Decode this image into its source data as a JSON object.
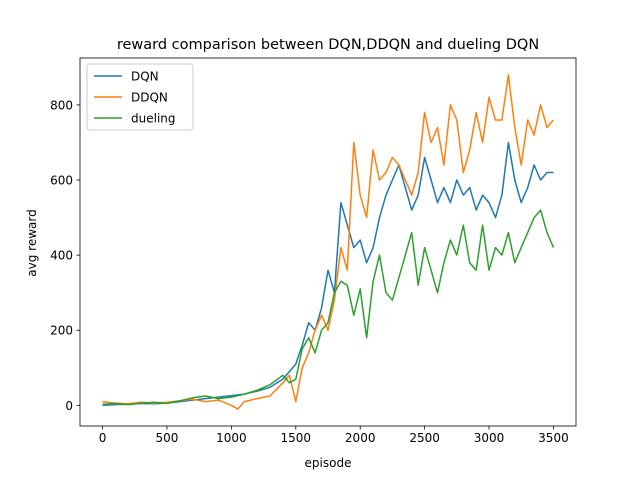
{
  "chart_data": {
    "type": "line",
    "title": "reward comparison between DQN,DDQN and dueling DQN",
    "xlabel": "episode",
    "ylabel": "avg reward",
    "xlim": [
      -175,
      3675
    ],
    "ylim": [
      -55,
      925
    ],
    "xticks": [
      0,
      500,
      1000,
      1500,
      2000,
      2500,
      3000,
      3500
    ],
    "yticks": [
      0,
      200,
      400,
      600,
      800
    ],
    "grid": false,
    "legend_position": "upper left",
    "series": [
      {
        "name": "DQN",
        "color": "#1f77b4",
        "x": [
          0,
          100,
          200,
          300,
          400,
          500,
          600,
          700,
          800,
          900,
          1000,
          1100,
          1200,
          1300,
          1400,
          1450,
          1500,
          1550,
          1600,
          1650,
          1700,
          1750,
          1800,
          1850,
          1900,
          1950,
          2000,
          2050,
          2100,
          2150,
          2200,
          2250,
          2300,
          2350,
          2400,
          2450,
          2500,
          2550,
          2600,
          2650,
          2700,
          2750,
          2800,
          2850,
          2900,
          2950,
          3000,
          3050,
          3100,
          3150,
          3200,
          3250,
          3300,
          3350,
          3400,
          3450,
          3500
        ],
        "values": [
          0,
          2,
          3,
          5,
          4,
          6,
          10,
          14,
          18,
          22,
          26,
          30,
          38,
          48,
          70,
          90,
          110,
          160,
          220,
          200,
          260,
          360,
          300,
          540,
          480,
          420,
          440,
          380,
          420,
          500,
          560,
          600,
          640,
          580,
          520,
          560,
          660,
          600,
          540,
          580,
          540,
          600,
          560,
          580,
          520,
          560,
          540,
          500,
          560,
          700,
          600,
          540,
          580,
          640,
          600,
          620,
          620
        ]
      },
      {
        "name": "DDQN",
        "color": "#ff7f0e",
        "x": [
          0,
          100,
          200,
          300,
          400,
          500,
          600,
          700,
          800,
          900,
          1000,
          1050,
          1100,
          1200,
          1300,
          1400,
          1450,
          1500,
          1550,
          1600,
          1650,
          1700,
          1750,
          1800,
          1850,
          1900,
          1950,
          2000,
          2050,
          2100,
          2150,
          2200,
          2250,
          2300,
          2350,
          2400,
          2450,
          2500,
          2550,
          2600,
          2650,
          2700,
          2750,
          2800,
          2850,
          2900,
          2950,
          3000,
          3050,
          3100,
          3150,
          3200,
          3250,
          3300,
          3350,
          3400,
          3450,
          3500
        ],
        "values": [
          10,
          6,
          4,
          8,
          6,
          8,
          12,
          16,
          10,
          14,
          0,
          -10,
          10,
          18,
          25,
          60,
          80,
          10,
          100,
          140,
          200,
          240,
          200,
          280,
          420,
          360,
          700,
          560,
          500,
          680,
          600,
          620,
          660,
          640,
          600,
          560,
          620,
          780,
          700,
          740,
          640,
          800,
          760,
          620,
          680,
          780,
          700,
          820,
          760,
          760,
          880,
          740,
          640,
          760,
          720,
          800,
          740,
          760
        ]
      },
      {
        "name": "dueling",
        "color": "#2ca02c",
        "x": [
          0,
          100,
          200,
          300,
          400,
          500,
          600,
          700,
          800,
          900,
          1000,
          1100,
          1200,
          1300,
          1400,
          1450,
          1500,
          1550,
          1600,
          1650,
          1700,
          1750,
          1800,
          1850,
          1900,
          1950,
          2000,
          2050,
          2100,
          2150,
          2200,
          2250,
          2300,
          2350,
          2400,
          2450,
          2500,
          2550,
          2600,
          2650,
          2700,
          2750,
          2800,
          2850,
          2900,
          2950,
          3000,
          3050,
          3100,
          3150,
          3200,
          3250,
          3300,
          3350,
          3400,
          3450,
          3500
        ],
        "values": [
          3,
          5,
          2,
          6,
          8,
          5,
          12,
          20,
          25,
          18,
          22,
          30,
          40,
          55,
          80,
          60,
          70,
          150,
          180,
          140,
          200,
          220,
          300,
          330,
          320,
          240,
          310,
          180,
          330,
          400,
          300,
          280,
          340,
          400,
          460,
          320,
          420,
          360,
          300,
          380,
          440,
          400,
          480,
          380,
          360,
          480,
          360,
          420,
          400,
          460,
          380,
          420,
          460,
          500,
          520,
          460,
          420
        ]
      }
    ]
  }
}
